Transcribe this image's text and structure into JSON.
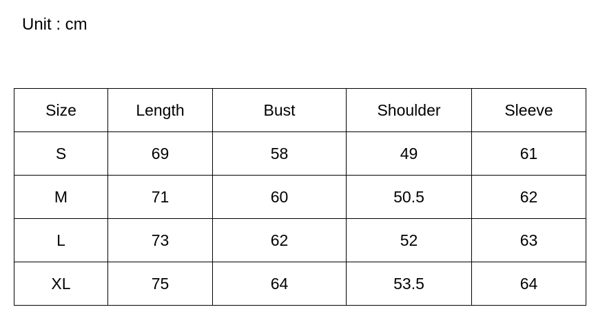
{
  "unit_label": "Unit : cm",
  "table": {
    "headers": [
      "Size",
      "Length",
      "Bust",
      "Shoulder",
      "Sleeve"
    ],
    "rows": [
      [
        "S",
        "69",
        "58",
        "49",
        "61"
      ],
      [
        "M",
        "71",
        "60",
        "50.5",
        "62"
      ],
      [
        "L",
        "73",
        "62",
        "52",
        "63"
      ],
      [
        "XL",
        "75",
        "64",
        "53.5",
        "64"
      ]
    ]
  }
}
